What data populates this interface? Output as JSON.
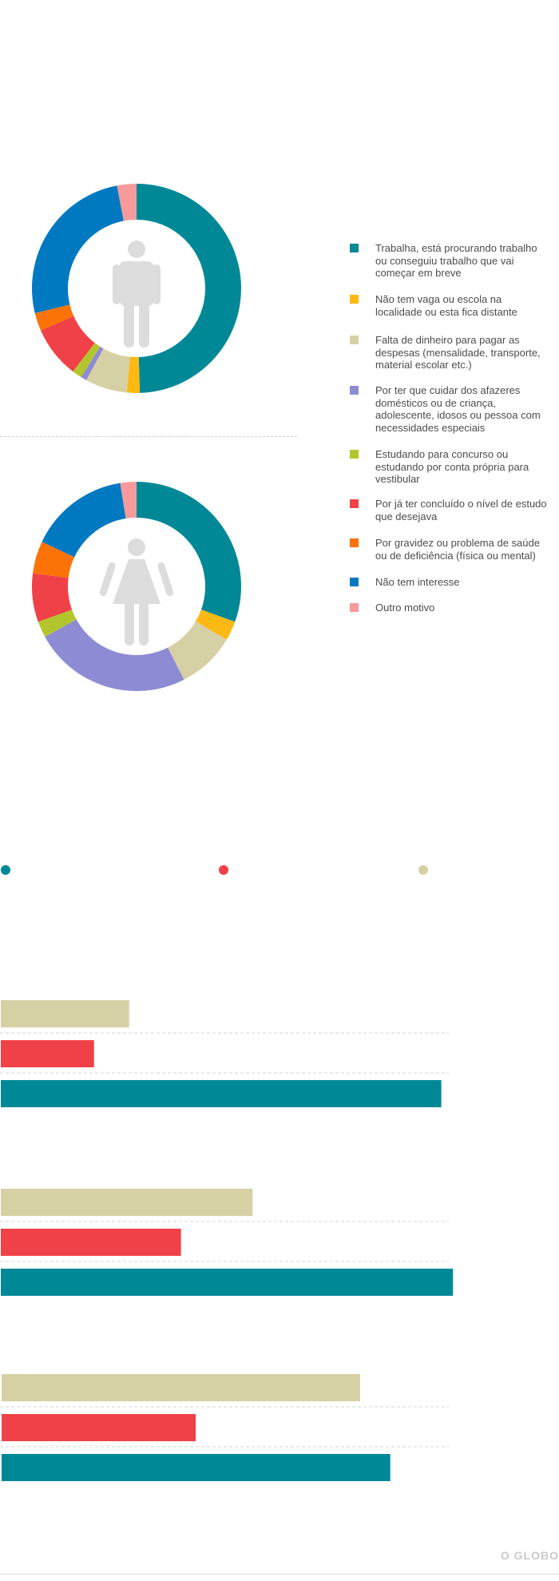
{
  "colors": {
    "teal": "#008896",
    "yellow": "#fdb913",
    "beige": "#d6d0a5",
    "purple": "#8e8bd5",
    "lime": "#b3c52d",
    "red": "#ef4147",
    "orange": "#fb7307",
    "blue": "#0079c1",
    "pink": "#f69a9c",
    "icon_gray": "#dcdcdc"
  },
  "legend": [
    {
      "label": "Trabalha, está procurando trabalho ou conseguiu trabalho que vai começar em breve",
      "color": "#008896"
    },
    {
      "label": "Não tem vaga ou escola na localidade ou esta fica distante",
      "color": "#fdb913"
    },
    {
      "label": "Falta de dinheiro para pagar as despesas (mensalidade, transporte, material escolar etc.)",
      "color": "#d6d0a5"
    },
    {
      "label": "Por ter que cuidar dos afazeres domésticos ou de criança, adolescente, idosos ou pessoa com necessidades especiais",
      "color": "#8e8bd5"
    },
    {
      "label": "Estudando para concurso ou estudando por conta própria para vestibular",
      "color": "#b3c52d"
    },
    {
      "label": "Por já ter concluído o nível de estudo que desejava",
      "color": "#ef4147"
    },
    {
      "label": "Por gravidez ou problema de saúde ou de deficiência (física ou mental)",
      "color": "#fb7307"
    },
    {
      "label": "Não tem interesse",
      "color": "#0079c1"
    },
    {
      "label": "Outro motivo",
      "color": "#f69a9c"
    }
  ],
  "chart_data": [
    {
      "type": "pie",
      "donut": true,
      "icon": "male-icon",
      "slices": [
        {
          "category": "Trabalha, está procurando trabalho ou conseguiu trabalho que vai começar em breve",
          "value": 49.5,
          "color": "#008896"
        },
        {
          "category": "Não tem vaga ou escola na localidade ou esta fica distante",
          "value": 2.0,
          "color": "#fdb913"
        },
        {
          "category": "Falta de dinheiro para pagar as despesas (mensalidade, transporte, material escolar etc.)",
          "value": 6.5,
          "color": "#d6d0a5"
        },
        {
          "category": "Por ter que cuidar dos afazeres domésticos ou de criança, adolescente, idosos ou pessoa com necessidades especiais",
          "value": 0.9,
          "color": "#8e8bd5"
        },
        {
          "category": "Estudando para concurso ou estudando por conta própria para vestibular",
          "value": 1.5,
          "color": "#b3c52d"
        },
        {
          "category": "Por já ter concluído o nível de estudo que desejava",
          "value": 8.0,
          "color": "#ef4147"
        },
        {
          "category": "Por gravidez ou problema de saúde ou de deficiência (física ou mental)",
          "value": 2.8,
          "color": "#fb7307"
        },
        {
          "category": "Não tem interesse",
          "value": 25.8,
          "color": "#0079c1"
        },
        {
          "category": "Outro motivo",
          "value": 3.0,
          "color": "#f69a9c"
        }
      ]
    },
    {
      "type": "pie",
      "donut": true,
      "icon": "female-icon",
      "slices": [
        {
          "category": "Trabalha, está procurando trabalho ou conseguiu trabalho que vai começar em breve",
          "value": 30.5,
          "color": "#008896"
        },
        {
          "category": "Não tem vaga ou escola na localidade ou esta fica distante",
          "value": 3.0,
          "color": "#fdb913"
        },
        {
          "category": "Falta de dinheiro para pagar as despesas (mensalidade, transporte, material escolar etc.)",
          "value": 9.0,
          "color": "#d6d0a5"
        },
        {
          "category": "Por ter que cuidar dos afazeres domésticos ou de criança, adolescente, idosos ou pessoa com necessidades especiais",
          "value": 24.5,
          "color": "#8e8bd5"
        },
        {
          "category": "Estudando para concurso ou estudando por conta própria para vestibular",
          "value": 2.5,
          "color": "#b3c52d"
        },
        {
          "category": "Por já ter concluído o nível de estudo que desejava",
          "value": 7.5,
          "color": "#ef4147"
        },
        {
          "category": "Por gravidez ou problema de saúde ou de deficiência (física ou mental)",
          "value": 5.0,
          "color": "#fb7307"
        },
        {
          "category": "Não tem interesse",
          "value": 15.5,
          "color": "#0079c1"
        },
        {
          "category": "Outro motivo",
          "value": 2.5,
          "color": "#f69a9c"
        }
      ]
    },
    {
      "type": "bar",
      "orientation": "horizontal",
      "legend_markers": [
        "#008896",
        "#ef4147",
        "#d6d0a5"
      ],
      "xlim": [
        0,
        100
      ],
      "groups": [
        {
          "bars": [
            {
              "value": 28.5,
              "color": "#d6d0a5"
            },
            {
              "value": 20.7,
              "color": "#ef4147"
            },
            {
              "value": 97.8,
              "color": "#008896"
            }
          ]
        },
        {
          "bars": [
            {
              "value": 55.9,
              "color": "#d6d0a5"
            },
            {
              "value": 40.0,
              "color": "#ef4147"
            },
            {
              "value": 100.4,
              "color": "#008896"
            }
          ]
        },
        {
          "bars": [
            {
              "value": 79.6,
              "color": "#d6d0a5"
            },
            {
              "value": 43.1,
              "color": "#ef4147"
            },
            {
              "value": 86.3,
              "color": "#008896"
            }
          ]
        }
      ]
    }
  ],
  "logo_text": "O GLOBO"
}
